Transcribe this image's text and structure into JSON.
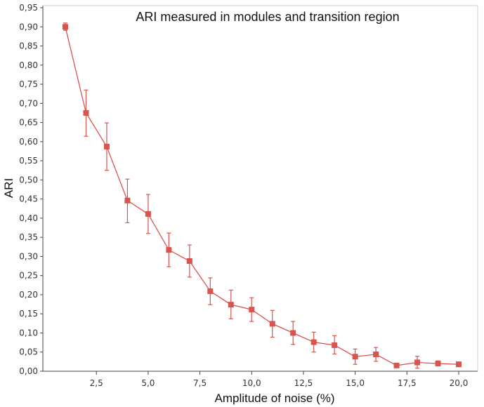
{
  "chart_data": {
    "type": "line",
    "title": "ARI measured in modules and transition region",
    "xlabel": "Amplitude of noise (%)",
    "ylabel": "ARI",
    "xlim": [
      0,
      21
    ],
    "ylim": [
      0,
      0.95
    ],
    "x_ticks": [
      2.5,
      5.0,
      7.5,
      10.0,
      12.5,
      15.0,
      17.5,
      20.0
    ],
    "x_tick_labels": [
      "2,5",
      "5,0",
      "7,5",
      "10,0",
      "12,5",
      "15,0",
      "17,5",
      "20,0"
    ],
    "y_ticks": [
      0,
      0.05,
      0.1,
      0.15,
      0.2,
      0.25,
      0.3,
      0.35,
      0.4,
      0.45,
      0.5,
      0.55,
      0.6,
      0.65,
      0.7,
      0.75,
      0.8,
      0.85,
      0.9,
      0.95
    ],
    "y_tick_labels": [
      "0,00",
      "0,05",
      "0,10",
      "0,15",
      "0,20",
      "0,25",
      "0,30",
      "0,35",
      "0,40",
      "0,45",
      "0,50",
      "0,55",
      "0,60",
      "0,65",
      "0,70",
      "0,75",
      "0,80",
      "0,85",
      "0,90",
      "0,95"
    ],
    "grid": false,
    "series": [
      {
        "name": "ARI",
        "color": "#d9534f",
        "x": [
          1,
          2,
          3,
          4,
          5,
          6,
          7,
          8,
          9,
          10,
          11,
          12,
          13,
          14,
          15,
          16,
          17,
          18,
          19,
          20
        ],
        "values": [
          0.9,
          0.675,
          0.587,
          0.446,
          0.411,
          0.317,
          0.288,
          0.209,
          0.174,
          0.161,
          0.124,
          0.1,
          0.076,
          0.068,
          0.038,
          0.044,
          0.015,
          0.023,
          0.02,
          0.018
        ],
        "err_low": [
          0.891,
          0.614,
          0.525,
          0.388,
          0.36,
          0.273,
          0.246,
          0.174,
          0.137,
          0.13,
          0.089,
          0.07,
          0.05,
          0.045,
          0.018,
          0.026,
          0.012,
          0.008,
          0.014,
          0.012
        ],
        "err_high": [
          0.91,
          0.735,
          0.649,
          0.502,
          0.462,
          0.361,
          0.33,
          0.244,
          0.212,
          0.192,
          0.159,
          0.13,
          0.102,
          0.093,
          0.058,
          0.062,
          0.019,
          0.039,
          0.027,
          0.024
        ]
      }
    ]
  }
}
